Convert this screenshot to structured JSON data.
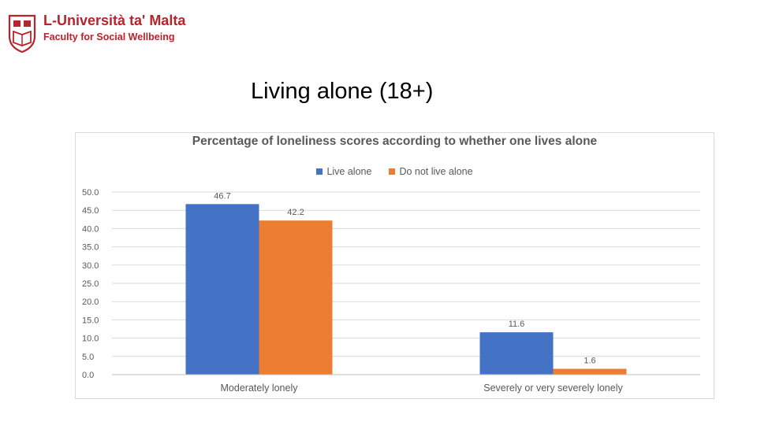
{
  "header": {
    "university_name": "L-Università ta' Malta",
    "faculty_name": "Faculty for Social Wellbeing"
  },
  "slide": {
    "title": "Living alone (18+)"
  },
  "chart_data": {
    "type": "bar",
    "title": "Percentage of loneliness scores according to whether one lives alone",
    "categories": [
      "Moderately lonely",
      "Severely or very severely lonely"
    ],
    "series": [
      {
        "name": "Live alone",
        "values": [
          46.7,
          11.6
        ],
        "color": "#4472c4"
      },
      {
        "name": "Do not live alone",
        "values": [
          42.2,
          1.6
        ],
        "color": "#ed7d31"
      }
    ],
    "ylim": [
      0,
      50
    ],
    "yticks": [
      "0.0",
      "5.0",
      "10.0",
      "15.0",
      "20.0",
      "25.0",
      "30.0",
      "35.0",
      "40.0",
      "45.0",
      "50.0"
    ],
    "xlabel": "",
    "ylabel": "",
    "legend": "top-center",
    "grid": true
  }
}
